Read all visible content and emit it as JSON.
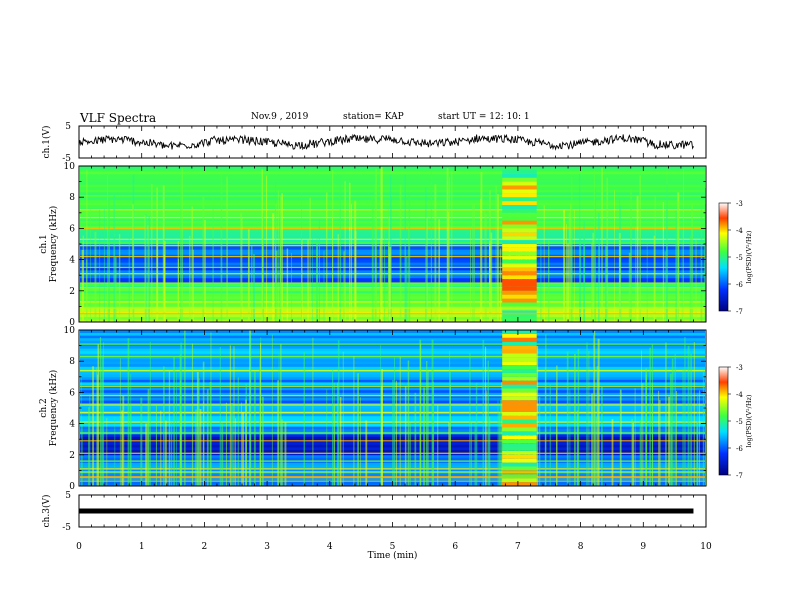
{
  "header": {
    "title": "VLF Spectra",
    "date": "Nov.9 , 2019",
    "station": "station= KAP",
    "start": "start UT = 12: 10: 1"
  },
  "chart_data": [
    {
      "type": "line",
      "panel": "ch1-waveform",
      "ylabel": "ch.1(V)",
      "ylim": [
        -5,
        5
      ],
      "yticks": [
        "5",
        "-5"
      ],
      "xlim": [
        0,
        10
      ],
      "description_values": "noisy waveform centered near 0 V, amplitude about ±2 V"
    },
    {
      "type": "heatmap",
      "panel": "ch1-spectrogram",
      "ylabel_line1": "ch.1",
      "ylabel_line2": "Frequency (kHz)",
      "ylim": [
        0,
        10
      ],
      "yticks": [
        "0",
        "2",
        "4",
        "6",
        "8",
        "10"
      ],
      "xlim": [
        0,
        10
      ],
      "colorbar": {
        "label": "log(PSD)(V²/Hz)",
        "range": [
          -7,
          -3
        ],
        "ticks": [
          "-3",
          "-4",
          "-5",
          "-6",
          "-7"
        ]
      },
      "features": {
        "burst_start_min": 6.75,
        "burst_end_min": 7.3
      }
    },
    {
      "type": "heatmap",
      "panel": "ch2-spectrogram",
      "ylabel_line1": "ch.2",
      "ylabel_line2": "Frequency (kHz)",
      "ylim": [
        0,
        10
      ],
      "yticks": [
        "0",
        "2",
        "4",
        "6",
        "8",
        "10"
      ],
      "xlim": [
        0,
        10
      ],
      "colorbar": {
        "label": "log(PSD)(V²/Hz)",
        "range": [
          -7,
          -3
        ],
        "ticks": [
          "-3",
          "-4",
          "-5",
          "-6",
          "-7"
        ]
      },
      "features": {
        "burst_start_min": 6.75,
        "burst_end_min": 7.3
      }
    },
    {
      "type": "line",
      "panel": "ch3-waveform",
      "ylabel": "ch.3(V)",
      "ylim": [
        -5,
        5
      ],
      "yticks": [
        "5",
        "-5"
      ],
      "xlim": [
        0,
        10
      ],
      "constant_value": 0
    }
  ],
  "xaxis": {
    "label": "Time (min)",
    "ticks": [
      "0",
      "1",
      "2",
      "3",
      "4",
      "5",
      "6",
      "7",
      "8",
      "9",
      "10"
    ]
  }
}
